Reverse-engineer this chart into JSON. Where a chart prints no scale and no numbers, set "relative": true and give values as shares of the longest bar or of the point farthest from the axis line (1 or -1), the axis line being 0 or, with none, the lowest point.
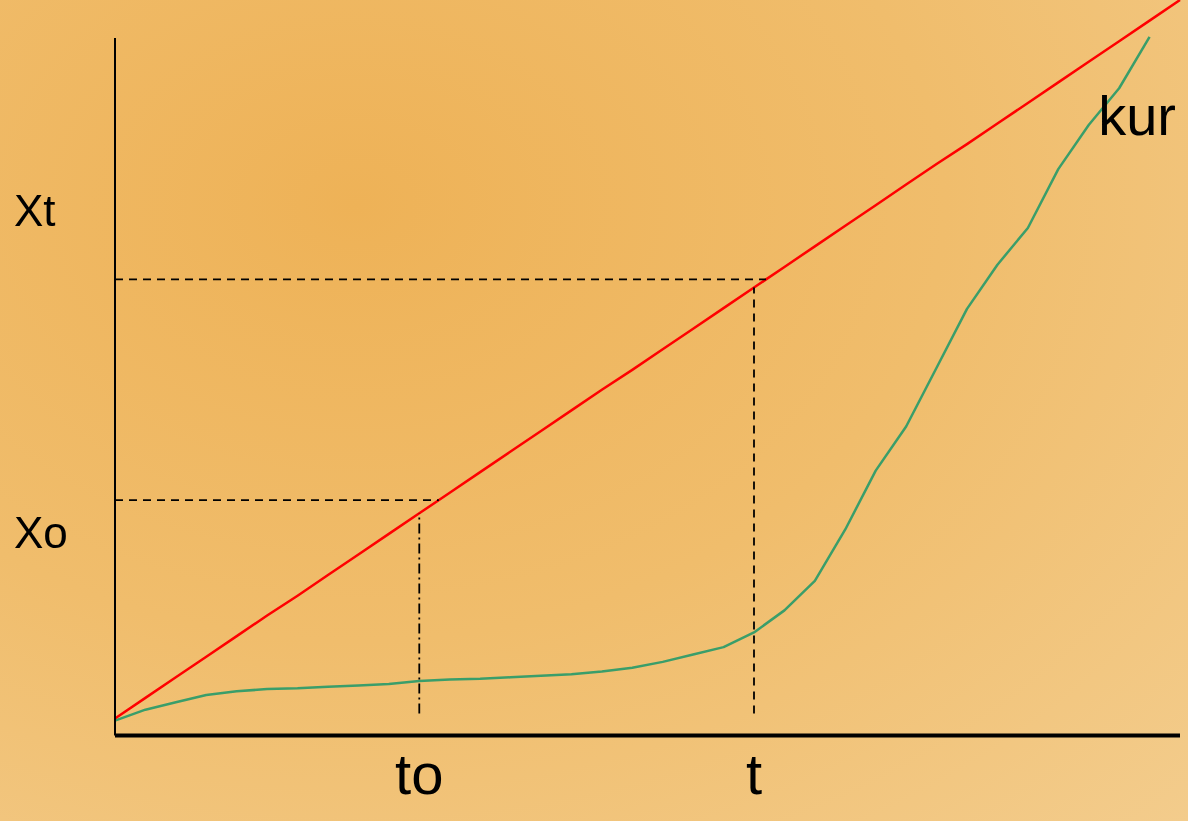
{
  "chart_data": {
    "type": "line",
    "relative": true,
    "legend": false,
    "grid": false,
    "marker": "none",
    "line_style": "solid",
    "categories": [
      null,
      null,
      null,
      null,
      null,
      null,
      null,
      null,
      null,
      null,
      "to",
      null,
      null,
      null,
      null,
      null,
      null,
      null,
      null,
      null,
      null,
      "t",
      null,
      null,
      null,
      null,
      null,
      null,
      null,
      null,
      null,
      null,
      null,
      null,
      null,
      null
    ],
    "series": [
      {
        "color": "#ff0000",
        "values": [
          0.023,
          0.051,
          0.079,
          0.107,
          0.135,
          0.163,
          0.19,
          0.218,
          0.246,
          0.274,
          0.302,
          0.33,
          0.358,
          0.386,
          0.414,
          0.442,
          0.47,
          0.497,
          0.525,
          0.553,
          0.581,
          0.609,
          0.637,
          0.665,
          0.693,
          0.721,
          0.749,
          0.777,
          0.804,
          0.832,
          0.86,
          0.888,
          0.916,
          0.944,
          0.972,
          1
        ]
      },
      {
        "color": "#3a9e6a",
        "values": [
          0.02,
          0.035,
          0.045,
          0.055,
          0.06,
          0.063,
          0.064,
          0.066,
          0.068,
          0.07,
          0.074,
          0.076,
          0.077,
          0.079,
          0.081,
          0.083,
          0.087,
          0.092,
          0.1,
          0.11,
          0.12,
          0.14,
          0.17,
          0.21,
          0.28,
          0.36,
          0.42,
          0.5,
          0.58,
          0.64,
          0.69,
          0.77,
          0.83,
          0.88,
          0.95,
          null
        ]
      }
    ],
    "ref_lines": [
      {
        "axis": "y",
        "value": 0.32,
        "label": "Xo",
        "line_style": "dashed"
      },
      {
        "axis": "y",
        "value": 0.62,
        "label": "Xt",
        "line_style": "dashed"
      },
      {
        "axis": "x",
        "value": "to",
        "line_style": "dashdot"
      },
      {
        "axis": "x",
        "value": "t",
        "line_style": "dashed"
      }
    ],
    "annotations": [
      "kur"
    ]
  }
}
